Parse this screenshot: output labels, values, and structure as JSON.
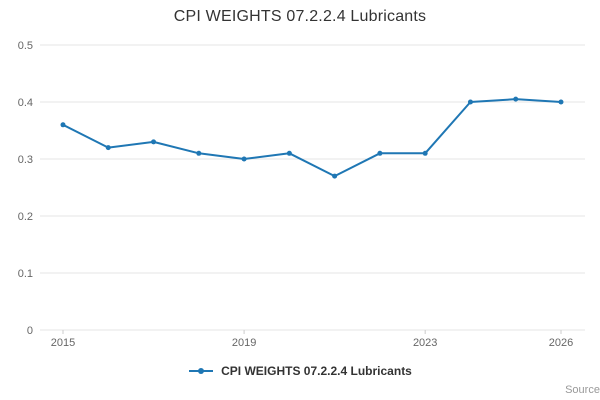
{
  "chart_data": {
    "type": "line",
    "title": "CPI WEIGHTS 07.2.2.4 Lubricants",
    "x": [
      2015,
      2016,
      2017,
      2018,
      2019,
      2020,
      2021,
      2022,
      2023,
      2024,
      2025,
      2026
    ],
    "series": [
      {
        "name": "CPI WEIGHTS 07.2.2.4 Lubricants",
        "values": [
          0.36,
          0.32,
          0.33,
          0.31,
          0.3,
          0.31,
          0.27,
          0.31,
          0.31,
          0.4,
          0.405,
          0.4
        ],
        "color": "#1f77b4"
      }
    ],
    "xlabel": "",
    "ylabel": "",
    "ylim": [
      0,
      0.5
    ],
    "yticks": [
      0,
      0.1,
      0.2,
      0.3,
      0.4,
      0.5
    ],
    "xtick_labels": [
      2015,
      2019,
      2023,
      2026
    ],
    "grid": "horizontal",
    "legend_position": "bottom"
  },
  "legend": {
    "label": "CPI WEIGHTS 07.2.2.4 Lubricants"
  },
  "source": {
    "label": "Source:"
  },
  "colors": {
    "line": "#1f77b4",
    "grid": "#e6e6e6",
    "axis_text": "#666666",
    "title_text": "#333333"
  }
}
